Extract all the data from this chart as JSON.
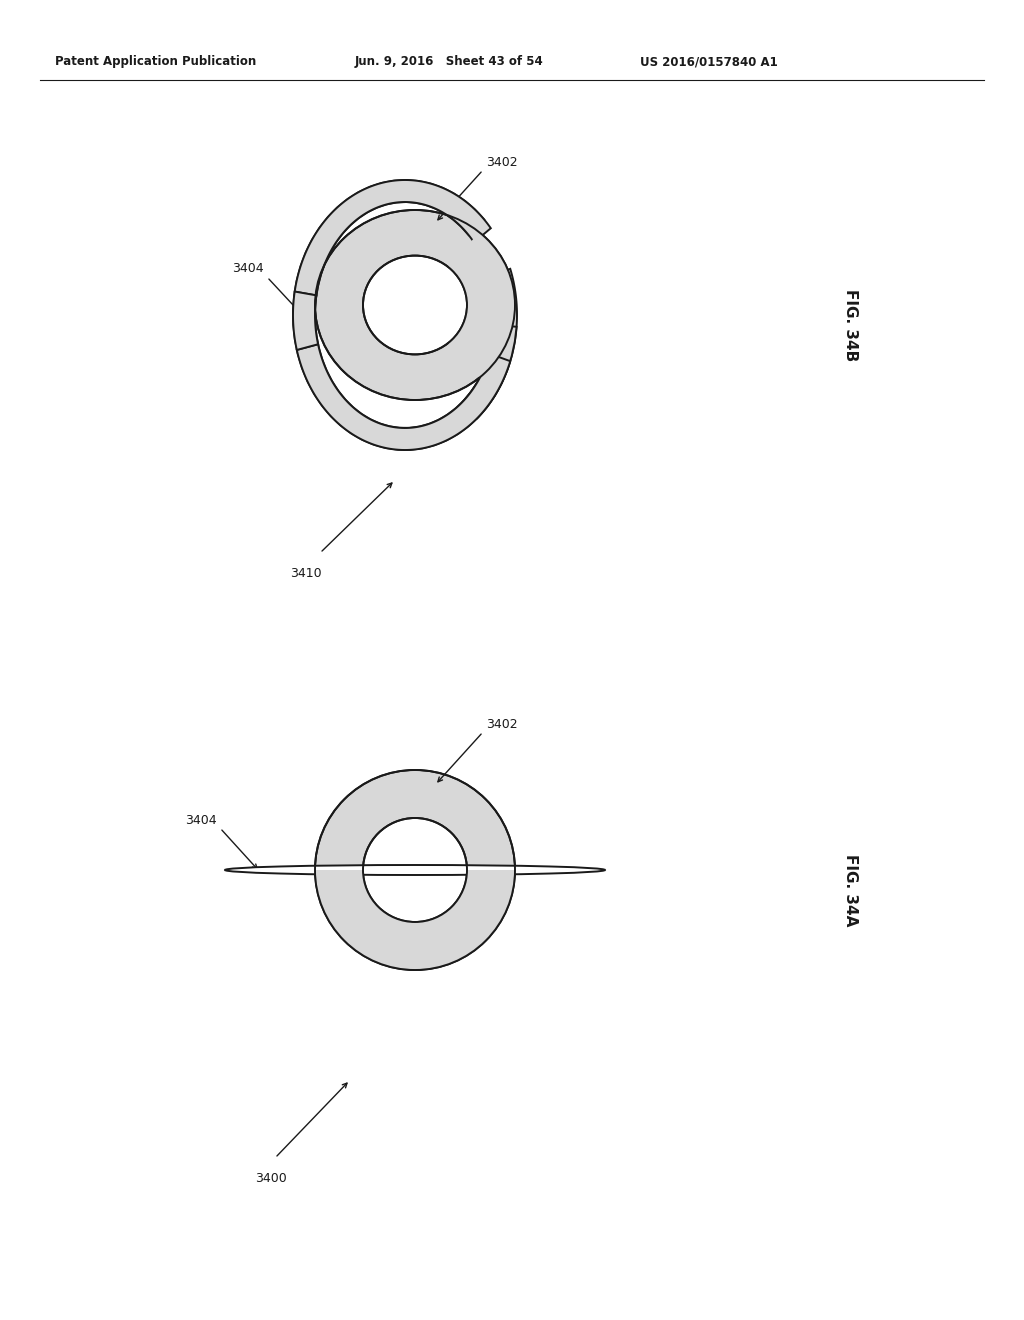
{
  "header_left": "Patent Application Publication",
  "header_mid": "Jun. 9, 2016   Sheet 43 of 54",
  "header_right": "US 2016/0157840 A1",
  "fig_label_34B": "FIG. 34B",
  "fig_label_34A": "FIG. 34A",
  "label_3402_top": "3402",
  "label_3404_top": "3404",
  "label_3410": "3410",
  "label_3402_bot": "3402",
  "label_3404_bot": "3404",
  "label_3400": "3400",
  "bg_color": "#ffffff",
  "line_color": "#1a1a1a",
  "font_size_header": 8.5,
  "font_size_label": 9,
  "font_size_fig": 11
}
